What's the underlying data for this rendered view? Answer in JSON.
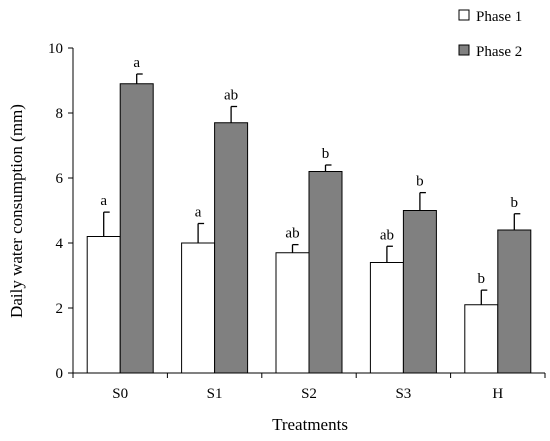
{
  "chart_data": {
    "type": "bar",
    "xlabel": "Treatments",
    "ylabel": "Daily water consumption (mm)",
    "ylim": [
      0,
      10
    ],
    "yticks": [
      "0",
      "2",
      "4",
      "6",
      "8",
      "10"
    ],
    "categories": [
      "S0",
      "S1",
      "S2",
      "S3",
      "H"
    ],
    "legend_position": "top-right",
    "series": [
      {
        "name": "Phase 1",
        "color": "#ffffff",
        "values": [
          4.2,
          4.0,
          3.7,
          3.4,
          2.1
        ],
        "errors": [
          0.75,
          0.6,
          0.25,
          0.5,
          0.45
        ],
        "letters": [
          "a",
          "a",
          "ab",
          "ab",
          "b"
        ]
      },
      {
        "name": "Phase 2",
        "color": "#808080",
        "values": [
          8.9,
          7.7,
          6.2,
          5.0,
          4.4
        ],
        "errors": [
          0.3,
          0.5,
          0.2,
          0.55,
          0.5
        ],
        "letters": [
          "a",
          "ab",
          "b",
          "b",
          "b"
        ]
      }
    ]
  }
}
